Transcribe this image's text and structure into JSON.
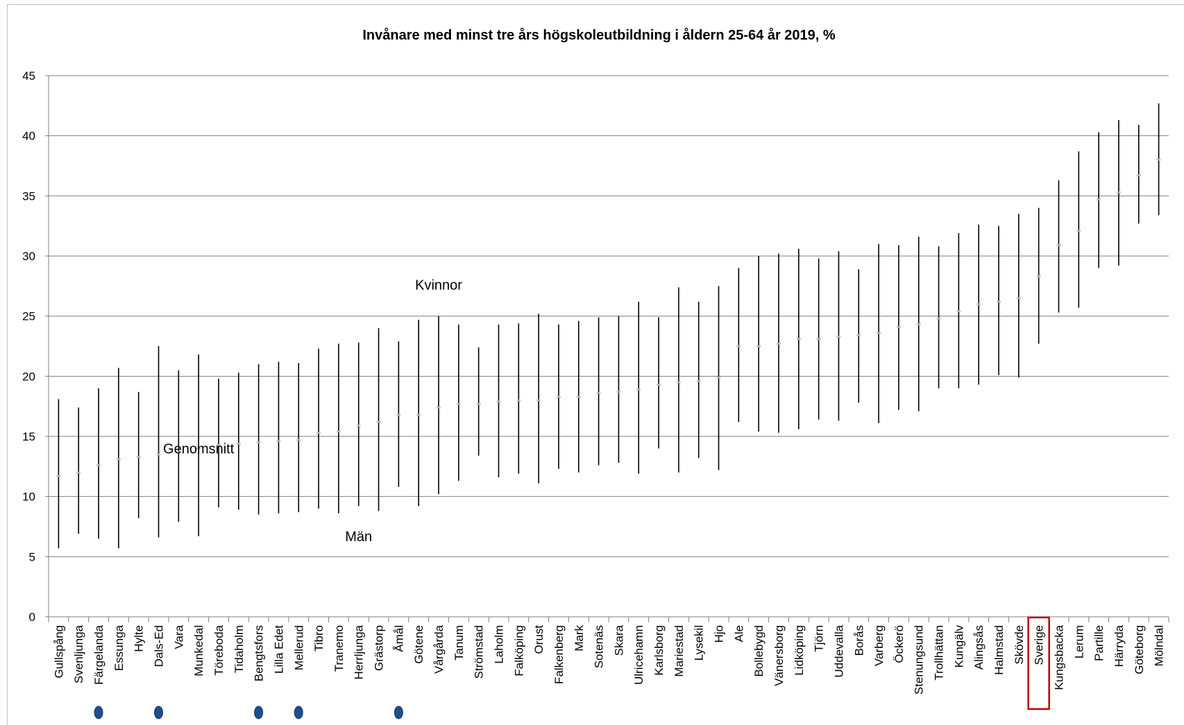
{
  "chart_data": {
    "type": "range",
    "title": "Invånare med minst tre års högskoleutbildning i åldern 25-64 år 2019, %",
    "ylim": [
      0,
      45
    ],
    "yticks": [
      0,
      5,
      10,
      15,
      20,
      25,
      30,
      35,
      40,
      45
    ],
    "grid": true,
    "categories": [
      "Gullspång",
      "Svenljunga",
      "Färgelanda",
      "Essunga",
      "Hylte",
      "Dals-Ed",
      "Vara",
      "Munkedal",
      "Töreboda",
      "Tidaholm",
      "Bengtsfors",
      "Lilla Edet",
      "Mellerud",
      "Tibro",
      "Tranemo",
      "Herrljunga",
      "Grästorp",
      "Åmål",
      "Götene",
      "Vårgårda",
      "Tanum",
      "Strömstad",
      "Laholm",
      "Falköping",
      "Orust",
      "Falkenberg",
      "Mark",
      "Sotenäs",
      "Skara",
      "Ulricehamn",
      "Karlsborg",
      "Mariestad",
      "Lysekil",
      "Hjo",
      "Ale",
      "Bollebygd",
      "Vänersborg",
      "Lidköping",
      "Tjörn",
      "Uddevalla",
      "Borås",
      "Varberg",
      "Öckerö",
      "Stenungsund",
      "Trollhättan",
      "Kungälv",
      "Alingsås",
      "Halmstad",
      "Skövde",
      "Sverige",
      "Kungsbacka",
      "Lerum",
      "Partille",
      "Härryda",
      "Göteborg",
      "Mölndal"
    ],
    "series": [
      {
        "name": "Kvinnor",
        "values": [
          18.1,
          17.4,
          19.0,
          20.7,
          18.7,
          22.5,
          20.5,
          21.8,
          19.8,
          20.3,
          21.0,
          21.2,
          21.1,
          22.3,
          22.7,
          22.8,
          24.0,
          22.9,
          24.7,
          25.0,
          24.3,
          22.4,
          24.3,
          24.4,
          25.2,
          24.3,
          24.6,
          24.9,
          25.0,
          26.2,
          24.9,
          27.4,
          26.2,
          27.5,
          29.0,
          30.0,
          30.2,
          30.6,
          29.8,
          30.4,
          28.9,
          31.0,
          30.9,
          31.6,
          30.8,
          31.9,
          32.6,
          32.5,
          33.5,
          34.0,
          36.3,
          38.7,
          40.3,
          41.3,
          40.9,
          42.7
        ]
      },
      {
        "name": "Genomsnitt",
        "values": [
          11.7,
          12.0,
          12.6,
          13.1,
          13.3,
          13.5,
          13.7,
          14.0,
          14.3,
          14.4,
          14.5,
          14.6,
          14.7,
          15.3,
          15.4,
          15.9,
          16.2,
          16.8,
          16.8,
          17.4,
          17.7,
          17.7,
          17.9,
          18.0,
          18.0,
          18.3,
          18.3,
          18.6,
          18.7,
          18.9,
          19.3,
          19.5,
          19.6,
          19.9,
          22.5,
          22.5,
          22.7,
          23.1,
          23.1,
          23.3,
          23.4,
          23.6,
          24.1,
          24.3,
          24.8,
          25.4,
          26.0,
          26.2,
          26.5,
          28.3,
          30.9,
          32.1,
          34.7,
          35.3,
          36.7,
          38.0
        ]
      },
      {
        "name": "Män",
        "values": [
          5.7,
          6.9,
          6.5,
          5.7,
          8.2,
          6.6,
          7.9,
          6.7,
          9.1,
          8.9,
          8.5,
          8.6,
          8.7,
          9.0,
          8.6,
          9.2,
          8.8,
          10.8,
          9.2,
          10.2,
          11.3,
          13.4,
          11.6,
          11.9,
          11.1,
          12.3,
          12.0,
          12.6,
          12.8,
          11.9,
          14.0,
          12.0,
          13.2,
          12.2,
          16.2,
          15.4,
          15.3,
          15.6,
          16.4,
          16.3,
          17.8,
          16.1,
          17.2,
          17.1,
          19.0,
          19.0,
          19.3,
          20.1,
          19.9,
          22.7,
          25.3,
          25.7,
          29.0,
          29.2,
          32.7,
          33.4
        ]
      }
    ],
    "annotations": [
      {
        "text": "Kvinnor",
        "category": "Vårgårda",
        "y": 27.2
      },
      {
        "text": "Genomsnitt",
        "category": "Munkedal",
        "y": 13.6
      },
      {
        "text": "Män",
        "category": "Herrljunga",
        "y": 6.3
      }
    ],
    "markers": {
      "dot_categories": [
        "Färgelanda",
        "Dals-Ed",
        "Bengtsfors",
        "Mellerud",
        "Åmål"
      ],
      "highlight_category": "Sverige"
    },
    "colors": {
      "range_line": "#000000",
      "average_marker": "#bfbfbf",
      "grid": "#7f7f7f",
      "dot": "#1f4e8c",
      "highlight_box": "#c00000"
    }
  }
}
